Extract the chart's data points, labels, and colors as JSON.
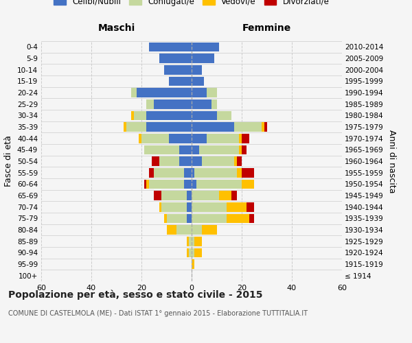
{
  "age_groups": [
    "100+",
    "95-99",
    "90-94",
    "85-89",
    "80-84",
    "75-79",
    "70-74",
    "65-69",
    "60-64",
    "55-59",
    "50-54",
    "45-49",
    "40-44",
    "35-39",
    "30-34",
    "25-29",
    "20-24",
    "15-19",
    "10-14",
    "5-9",
    "0-4"
  ],
  "birth_years": [
    "≤ 1914",
    "1915-1919",
    "1920-1924",
    "1925-1929",
    "1930-1934",
    "1935-1939",
    "1940-1944",
    "1945-1949",
    "1950-1954",
    "1955-1959",
    "1960-1964",
    "1965-1969",
    "1970-1974",
    "1975-1979",
    "1980-1984",
    "1985-1989",
    "1990-1994",
    "1995-1999",
    "2000-2004",
    "2005-2009",
    "2010-2014"
  ],
  "maschi": {
    "celibi": [
      0,
      0,
      0,
      0,
      0,
      2,
      2,
      2,
      3,
      3,
      5,
      5,
      9,
      18,
      18,
      15,
      22,
      9,
      11,
      13,
      17
    ],
    "coniugati": [
      0,
      0,
      1,
      1,
      6,
      8,
      10,
      10,
      14,
      12,
      8,
      14,
      11,
      8,
      5,
      3,
      2,
      0,
      0,
      0,
      0
    ],
    "vedovi": [
      0,
      0,
      1,
      1,
      4,
      1,
      1,
      0,
      1,
      0,
      0,
      0,
      1,
      1,
      1,
      0,
      0,
      0,
      0,
      0,
      0
    ],
    "divorziati": [
      0,
      0,
      0,
      0,
      0,
      0,
      0,
      3,
      1,
      2,
      3,
      0,
      0,
      0,
      0,
      0,
      0,
      0,
      0,
      0,
      0
    ]
  },
  "femmine": {
    "nubili": [
      0,
      0,
      0,
      0,
      0,
      0,
      0,
      0,
      2,
      1,
      4,
      3,
      6,
      17,
      10,
      8,
      6,
      5,
      4,
      9,
      11
    ],
    "coniugate": [
      0,
      0,
      1,
      1,
      4,
      14,
      14,
      11,
      18,
      17,
      13,
      16,
      13,
      11,
      6,
      2,
      4,
      0,
      0,
      0,
      0
    ],
    "vedove": [
      0,
      1,
      3,
      3,
      6,
      9,
      8,
      5,
      5,
      2,
      1,
      1,
      1,
      1,
      0,
      0,
      0,
      0,
      0,
      0,
      0
    ],
    "divorziate": [
      0,
      0,
      0,
      0,
      0,
      2,
      3,
      2,
      0,
      5,
      2,
      2,
      3,
      1,
      0,
      0,
      0,
      0,
      0,
      0,
      0
    ]
  },
  "colors": {
    "celibi": "#4472c4",
    "coniugati": "#c5d89e",
    "vedovi": "#ffc000",
    "divorziati": "#c00000"
  },
  "title": "Popolazione per età, sesso e stato civile - 2015",
  "subtitle": "COMUNE DI CASTELMOLA (ME) - Dati ISTAT 1° gennaio 2015 - Elaborazione TUTTITALIA.IT",
  "xlabel_left": "Maschi",
  "xlabel_right": "Femmine",
  "ylabel_left": "Fasce di età",
  "ylabel_right": "Anni di nascita",
  "xlim": 60,
  "bg_color": "#f5f5f5",
  "grid_color": "#cccccc",
  "legend_labels": [
    "Celibi/Nubili",
    "Coniugati/e",
    "Vedovi/e",
    "Divorziati/e"
  ]
}
